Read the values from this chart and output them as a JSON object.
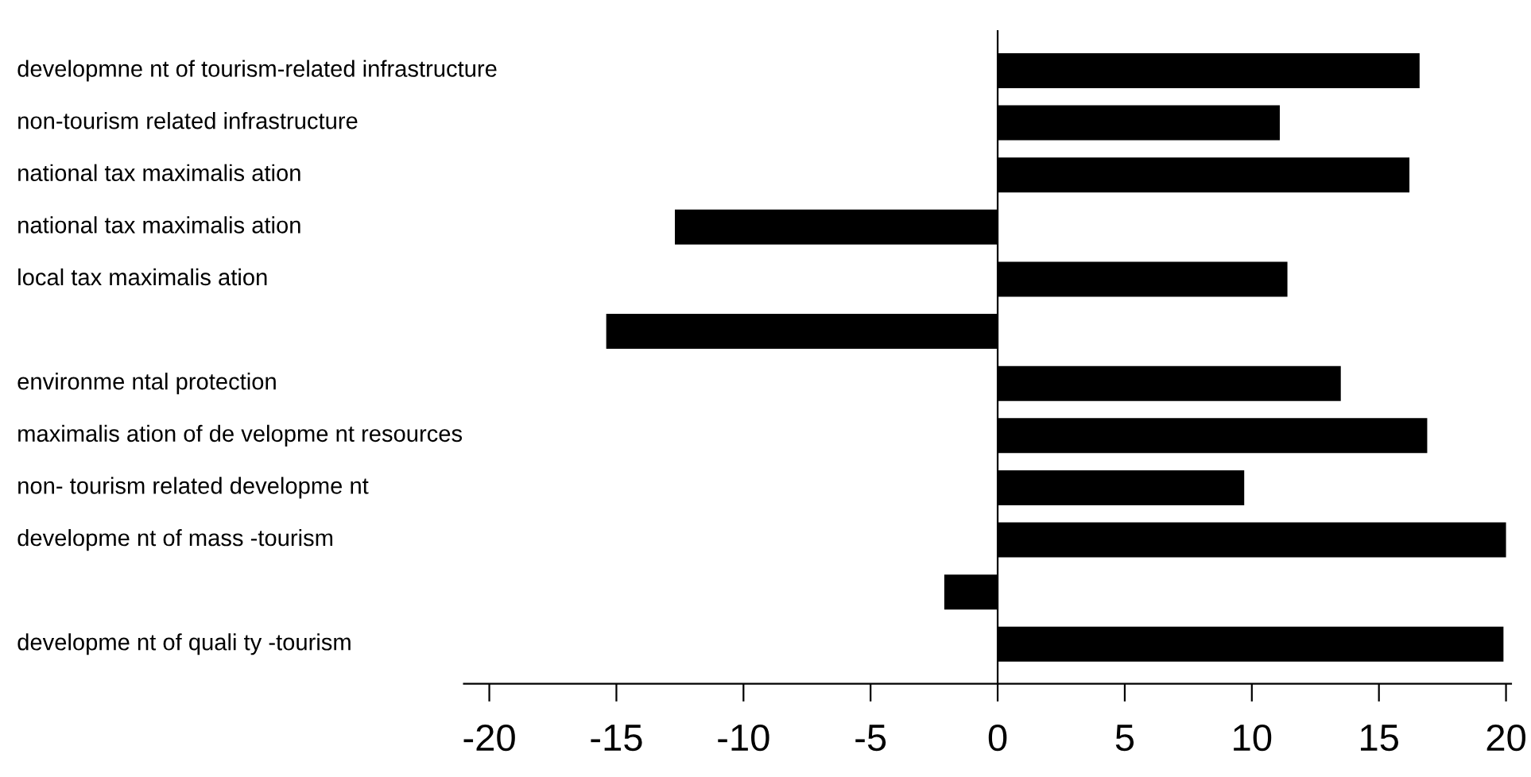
{
  "chart_data": {
    "type": "bar",
    "orientation": "horizontal",
    "categories": [
      "developmne nt of tourism-related infrastructure",
      "non-tourism related infrastructure",
      "national tax maximalis ation",
      "national tax maximalis ation",
      "local tax maximalis ation",
      null,
      "environme ntal protection",
      "maximalis ation of de velopme nt resources",
      "non- tourism related developme nt",
      "developme nt of mass -tourism",
      null,
      "developme nt of quali ty -tourism"
    ],
    "values": [
      16.6,
      11.1,
      16.2,
      -12.7,
      11.4,
      -15.4,
      13.5,
      16.9,
      9.7,
      20,
      -2.1,
      19.9
    ],
    "color": "#000000",
    "xlim": [
      -21,
      20.2
    ],
    "xticks": [
      -20,
      -15,
      -10,
      -5,
      0,
      5,
      10,
      15,
      20
    ],
    "legend": false
  }
}
